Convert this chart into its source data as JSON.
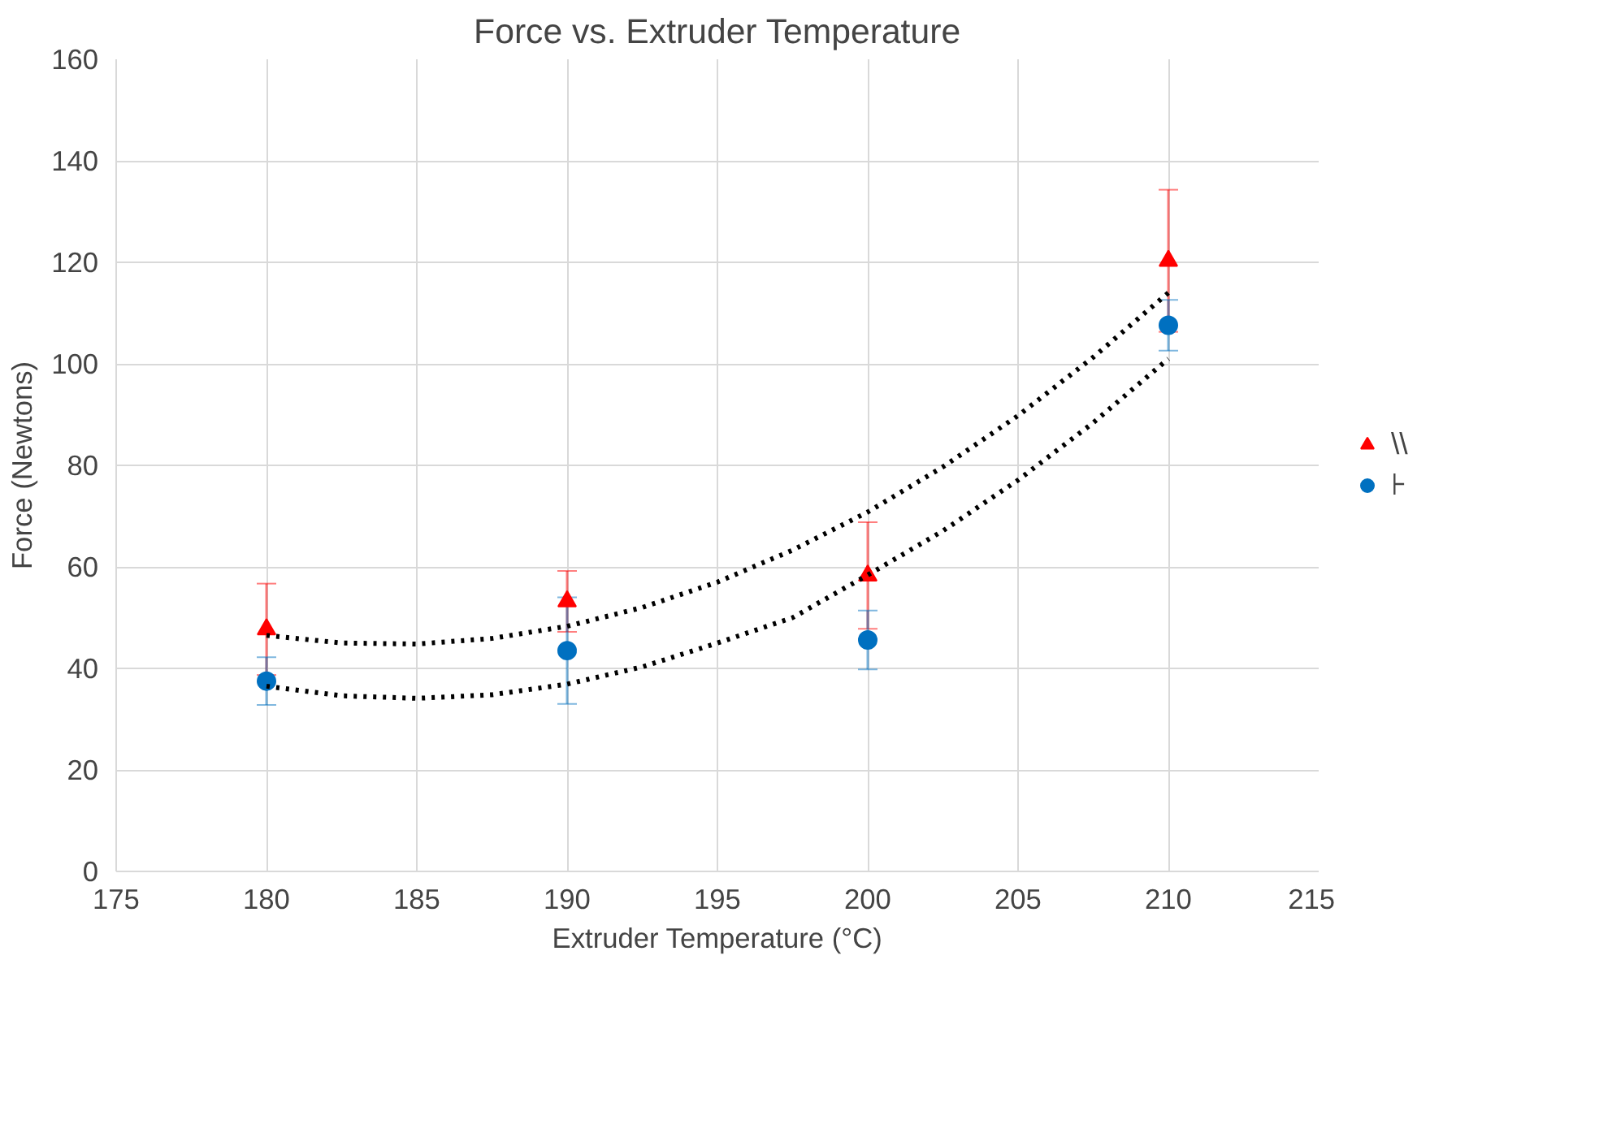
{
  "chart_data": {
    "type": "scatter",
    "title": "Force vs. Extruder Temperature",
    "xlabel": "Extruder Temperature (°C)",
    "ylabel": "Force (Newtons)",
    "xlim": [
      175,
      215
    ],
    "xticks": [
      175,
      180,
      185,
      190,
      195,
      200,
      205,
      210,
      215
    ],
    "ylim": [
      0,
      160
    ],
    "yticks": [
      0,
      20,
      40,
      60,
      80,
      100,
      120,
      140,
      160
    ],
    "grid": true,
    "legend": "right",
    "series": [
      {
        "name": "\\\\",
        "color": "#ff0000",
        "marker": "triangle",
        "x": [
          180,
          190,
          200,
          210
        ],
        "values": [
          47.7,
          53.2,
          58.3,
          120.3
        ],
        "errors": [
          9,
          6,
          10.5,
          14
        ]
      },
      {
        "name": "⊦",
        "color": "#0070c0",
        "marker": "circle",
        "x": [
          180,
          190,
          200,
          210
        ],
        "values": [
          37.5,
          43.5,
          45.6,
          107.6
        ],
        "errors": [
          4.7,
          10.5,
          5.8,
          5
        ]
      },
      {
        "type": "line",
        "color": "#000000",
        "line_style": "dotted",
        "x": [
          180,
          182.5,
          185,
          187.5,
          190,
          192.5,
          195,
          197.5,
          200,
          202.5,
          205,
          207.5,
          210
        ],
        "values": [
          46.5,
          45,
          44.8,
          45.9,
          48.3,
          52,
          57,
          63.3,
          70.8,
          79.7,
          89.8,
          101.3,
          114
        ]
      },
      {
        "type": "line",
        "color": "#000000",
        "line_style": "dotted",
        "x": [
          180,
          182.5,
          185,
          187.5,
          190,
          192.5,
          195,
          197.5,
          200,
          202.5,
          205,
          207.5,
          210
        ],
        "values": [
          36.5,
          34.6,
          34.1,
          34.8,
          36.9,
          40.3,
          45,
          50,
          58.4,
          67.1,
          77.1,
          88.4,
          101
        ]
      }
    ]
  }
}
